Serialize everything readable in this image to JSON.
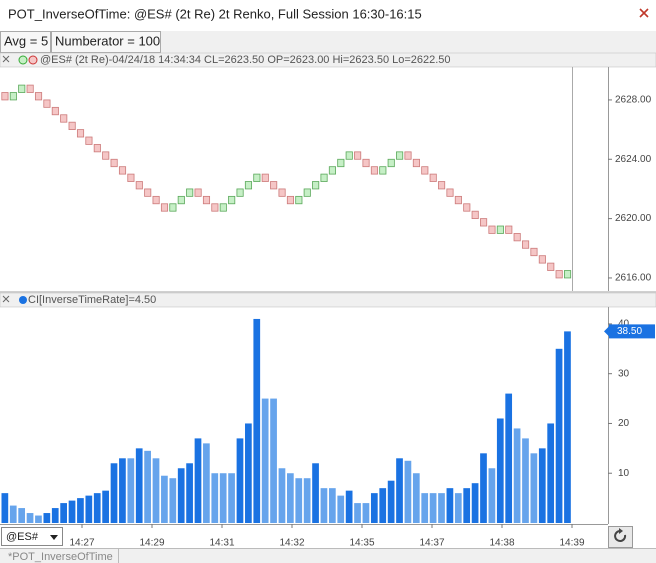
{
  "window_title": "POT_InverseOfTime: @ES# (2t Re) 2t Renko, Full Session 16:30-16:15",
  "inputs": [
    "Avg = 5",
    "Numberator = 100"
  ],
  "symbol": "@ES#",
  "tab": "*POT_InverseOfTime",
  "x_labels": [
    "14:27",
    "14:29",
    "14:31",
    "14:32",
    "14:35",
    "14:37",
    "14:38",
    "14:39"
  ],
  "chart_data": [
    {
      "type": "renko",
      "title": "@ES# (2t Re)-04/24/18 14:34:34 CL=2623.50 OP=2623.00 Hi=2623.50 Lo=2622.50",
      "brick_size": 0.5,
      "values": [
        2628,
        2628.5,
        2629,
        2628.5,
        2628,
        2627.5,
        2627,
        2626.5,
        2626,
        2625.5,
        2625,
        2624.5,
        2624,
        2623.5,
        2623,
        2622.5,
        2622,
        2621.5,
        2621,
        2620.5,
        2621,
        2621.5,
        2622,
        2621.5,
        2621,
        2620.5,
        2621,
        2621.5,
        2622,
        2622.5,
        2623,
        2622.5,
        2622,
        2621.5,
        2621,
        2621.5,
        2622,
        2622.5,
        2623,
        2623.5,
        2624,
        2624.5,
        2624,
        2623.5,
        2623,
        2623.5,
        2624,
        2624.5,
        2624,
        2623.5,
        2623,
        2622.5,
        2622,
        2621.5,
        2621,
        2620.5,
        2620,
        2619.5,
        2619,
        2619.5,
        2619,
        2618.5,
        2618,
        2617.5,
        2617,
        2616.5,
        2616,
        2616.5
      ],
      "colors": {
        "up": "#c6efc6",
        "down": "#f5c6c6"
      },
      "ylim": [
        2615.12,
        2630.22
      ],
      "yticks": [
        {
          "value": 2616,
          "label": "2616.00"
        },
        {
          "value": 2620,
          "label": "2620.00"
        },
        {
          "value": 2624,
          "label": "2624.00"
        },
        {
          "value": 2628,
          "label": "2628.00"
        }
      ]
    },
    {
      "type": "bar",
      "title": "CI[InverseTimeRate]=4.50",
      "values": [
        6,
        3.5,
        3,
        2,
        1.5,
        2,
        3,
        4,
        4.5,
        5,
        5.5,
        6,
        6.5,
        12,
        13,
        13,
        15,
        14.5,
        13,
        9.5,
        9,
        11,
        12,
        17,
        16,
        10,
        10,
        10,
        17,
        20,
        41,
        25,
        25,
        11,
        10,
        9,
        9,
        12,
        7,
        7,
        5.5,
        6.5,
        4,
        4,
        6,
        7,
        8.5,
        13,
        12.5,
        10,
        6,
        6,
        6,
        7,
        6,
        7,
        8,
        14,
        11,
        21,
        26,
        19,
        17,
        14,
        15,
        20,
        35,
        38.5
      ],
      "colors": {
        "up": "#1a72e2",
        "down": "#66a4ec"
      },
      "ylim": [
        0,
        43.4
      ],
      "yticks": [
        10,
        20,
        30,
        40
      ],
      "last_label": "38.50"
    }
  ]
}
